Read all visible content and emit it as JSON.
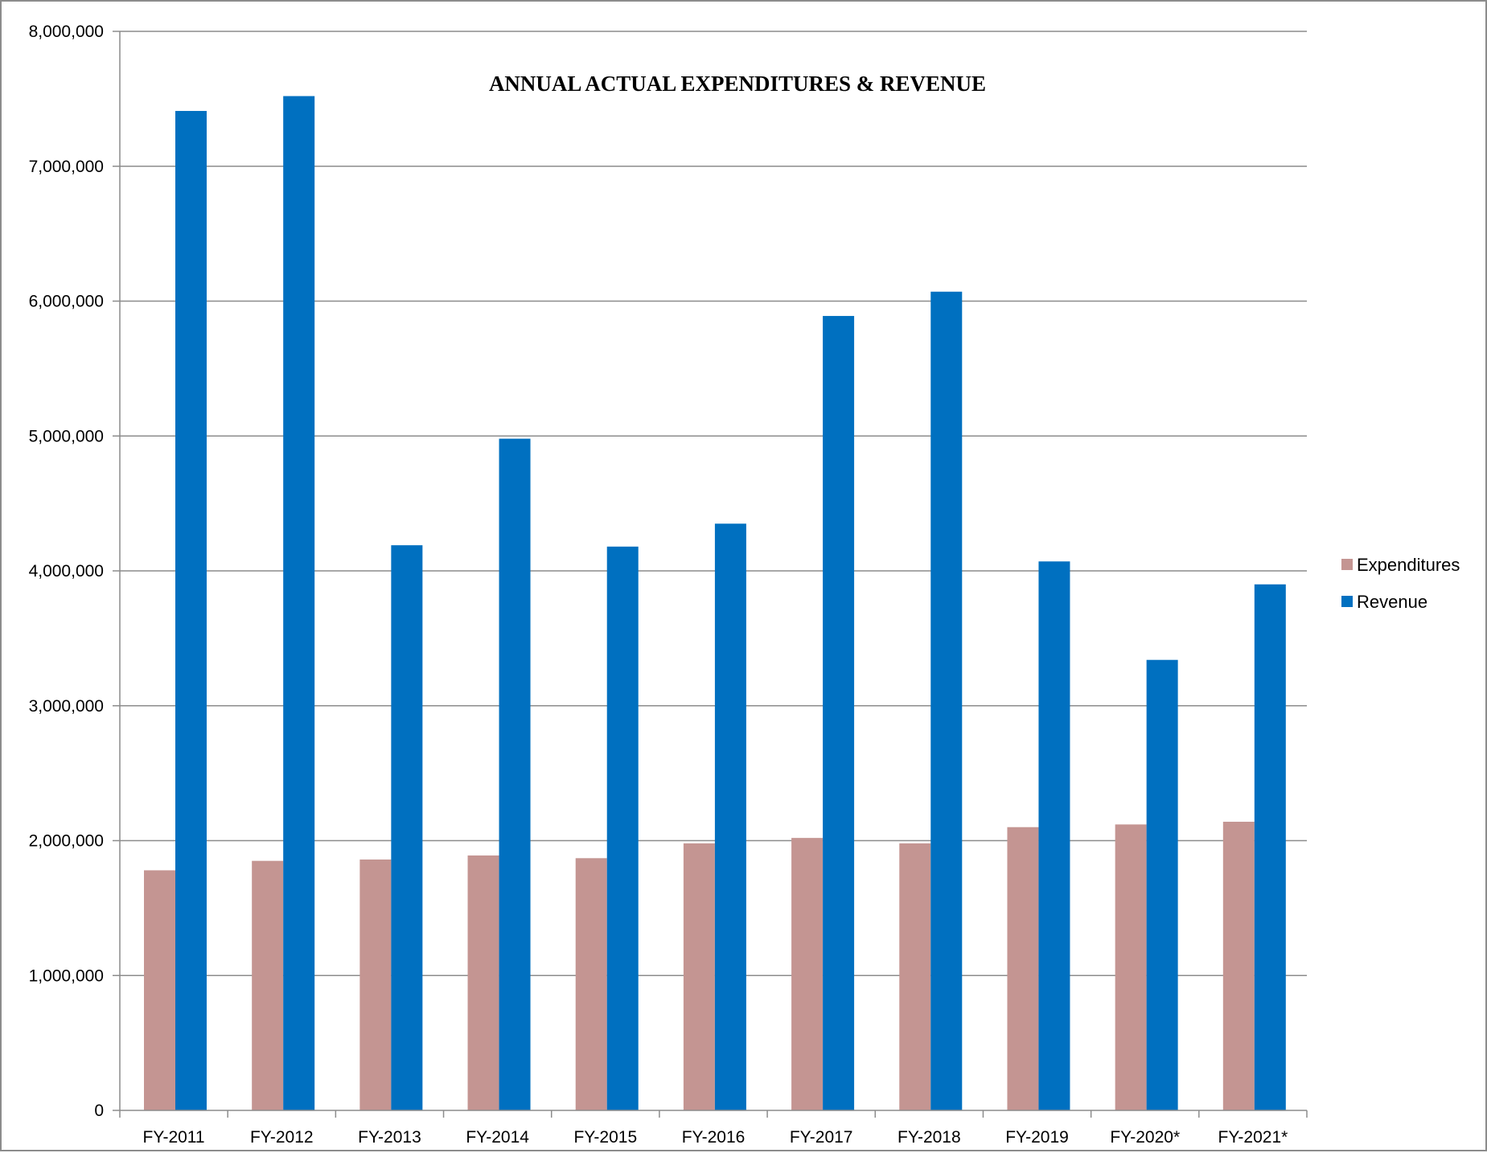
{
  "chart_data": {
    "type": "bar",
    "title": "ANNUAL ACTUAL EXPENDITURES & REVENUE",
    "xlabel": "",
    "ylabel": "",
    "ylim": [
      0,
      8000000
    ],
    "ytick_step": 1000000,
    "ytick_labels": [
      "0",
      "1,000,000",
      "2,000,000",
      "3,000,000",
      "4,000,000",
      "5,000,000",
      "6,000,000",
      "7,000,000",
      "8,000,000"
    ],
    "grid": true,
    "legend_position": "right",
    "categories": [
      "FY-2011",
      "FY-2012",
      "FY-2013",
      "FY-2014",
      "FY-2015",
      "FY-2016",
      "FY-2017",
      "FY-2018",
      "FY-2019",
      "FY-2020*",
      "FY-2021*"
    ],
    "series": [
      {
        "name": "Expenditures",
        "color": "#c49592",
        "values": [
          1780000,
          1850000,
          1860000,
          1890000,
          1870000,
          1980000,
          2020000,
          1980000,
          2100000,
          2120000,
          2140000
        ]
      },
      {
        "name": "Revenue",
        "color": "#0070c0",
        "values": [
          7410000,
          7520000,
          4190000,
          4980000,
          4180000,
          4350000,
          5890000,
          6070000,
          4070000,
          3340000,
          3900000
        ]
      }
    ]
  }
}
